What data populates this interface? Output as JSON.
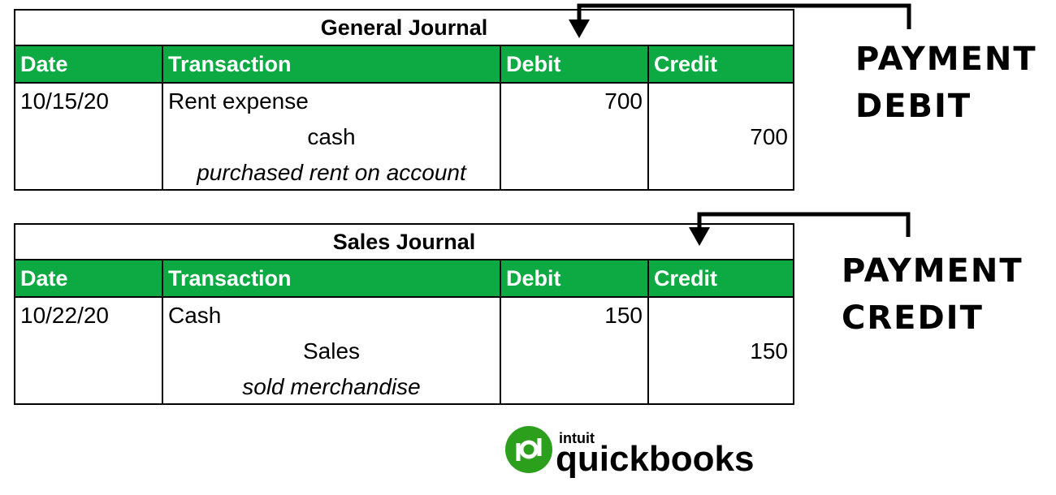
{
  "columns": {
    "date": "Date",
    "transaction": "Transaction",
    "debit": "Debit",
    "credit": "Credit"
  },
  "general": {
    "title": "General Journal",
    "date": "10/15/20",
    "debit_account": "Rent expense",
    "credit_account": "cash",
    "memo": "purchased rent on account",
    "debit_amount": "700",
    "credit_amount": "700"
  },
  "sales": {
    "title": "Sales Journal",
    "date": "10/22/20",
    "debit_account": "Cash",
    "credit_account": "Sales",
    "memo": "sold merchandise",
    "debit_amount": "150",
    "credit_amount": "150"
  },
  "callouts": {
    "top_line1": "PAYMENT",
    "top_line2": "DEBIT",
    "bottom_line1": "PAYMENT",
    "bottom_line2": "CREDIT"
  },
  "logo": {
    "brand": "intuit",
    "product": "quickbooks"
  },
  "colors": {
    "header_green": "#0daa44",
    "logo_green": "#2ca01c"
  }
}
